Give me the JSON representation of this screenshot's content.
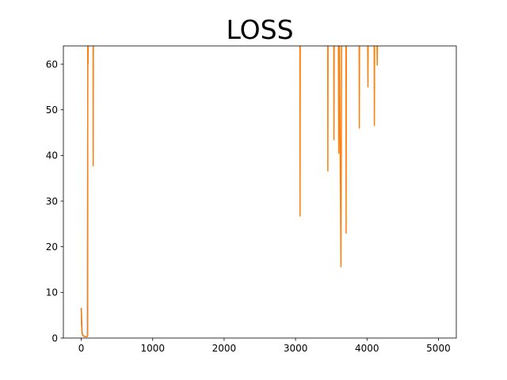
{
  "chart_data": {
    "type": "line",
    "title": "LOSS",
    "xlabel": "",
    "ylabel": "",
    "xlim": [
      -250,
      5250
    ],
    "ylim": [
      0,
      64
    ],
    "xticks": [
      0,
      1000,
      2000,
      3000,
      4000,
      5000
    ],
    "yticks": [
      0,
      10,
      20,
      30,
      40,
      50,
      60
    ],
    "grid": false,
    "legend": "none",
    "series": [
      {
        "color": "#1f77b4",
        "segments": [
          [
            [
              0,
              6.6
            ],
            [
              6,
              3.5
            ],
            [
              12,
              1.2
            ],
            [
              20,
              0.6
            ],
            [
              40,
              0.4
            ],
            [
              60,
              0.3
            ],
            [
              80,
              0.3
            ],
            [
              88,
              0.5
            ],
            [
              92,
              64
            ]
          ]
        ]
      },
      {
        "color": "#ff7f0e",
        "segments": [
          [
            [
              0,
              6.6
            ],
            [
              4,
              3.2
            ],
            [
              8,
              1.8
            ],
            [
              12,
              1.0
            ],
            [
              20,
              0.6
            ],
            [
              40,
              0.4
            ],
            [
              60,
              0.3
            ],
            [
              80,
              0.3
            ],
            [
              85,
              0.3
            ],
            [
              88,
              0.6
            ],
            [
              92,
              64
            ],
            [
              95,
              60
            ],
            [
              98,
              64
            ]
          ],
          [
            [
              166,
              64
            ],
            [
              168,
              37.7
            ],
            [
              170,
              64
            ]
          ],
          [
            [
              3060,
              64
            ],
            [
              3063,
              26.7
            ],
            [
              3066,
              64
            ]
          ],
          [
            [
              3450,
              64
            ],
            [
              3452,
              36.6
            ],
            [
              3455,
              64
            ]
          ],
          [
            [
              3535,
              64
            ],
            [
              3538,
              43.4
            ],
            [
              3541,
              64
            ]
          ],
          [
            [
              3600,
              64
            ],
            [
              3605,
              40.5
            ],
            [
              3615,
              64
            ],
            [
              3625,
              40.2
            ],
            [
              3635,
              15.6
            ],
            [
              3645,
              64
            ]
          ],
          [
            [
              3705,
              64
            ],
            [
              3708,
              23.0
            ],
            [
              3711,
              64
            ]
          ],
          [
            [
              3890,
              64
            ],
            [
              3893,
              46.0
            ],
            [
              3896,
              64
            ]
          ],
          [
            [
              4010,
              64
            ],
            [
              4013,
              55.0
            ],
            [
              4016,
              64
            ]
          ],
          [
            [
              4100,
              64
            ],
            [
              4103,
              46.6
            ],
            [
              4106,
              64
            ]
          ],
          [
            [
              4140,
              64
            ],
            [
              4143,
              59.8
            ],
            [
              4146,
              64
            ]
          ]
        ]
      }
    ]
  }
}
